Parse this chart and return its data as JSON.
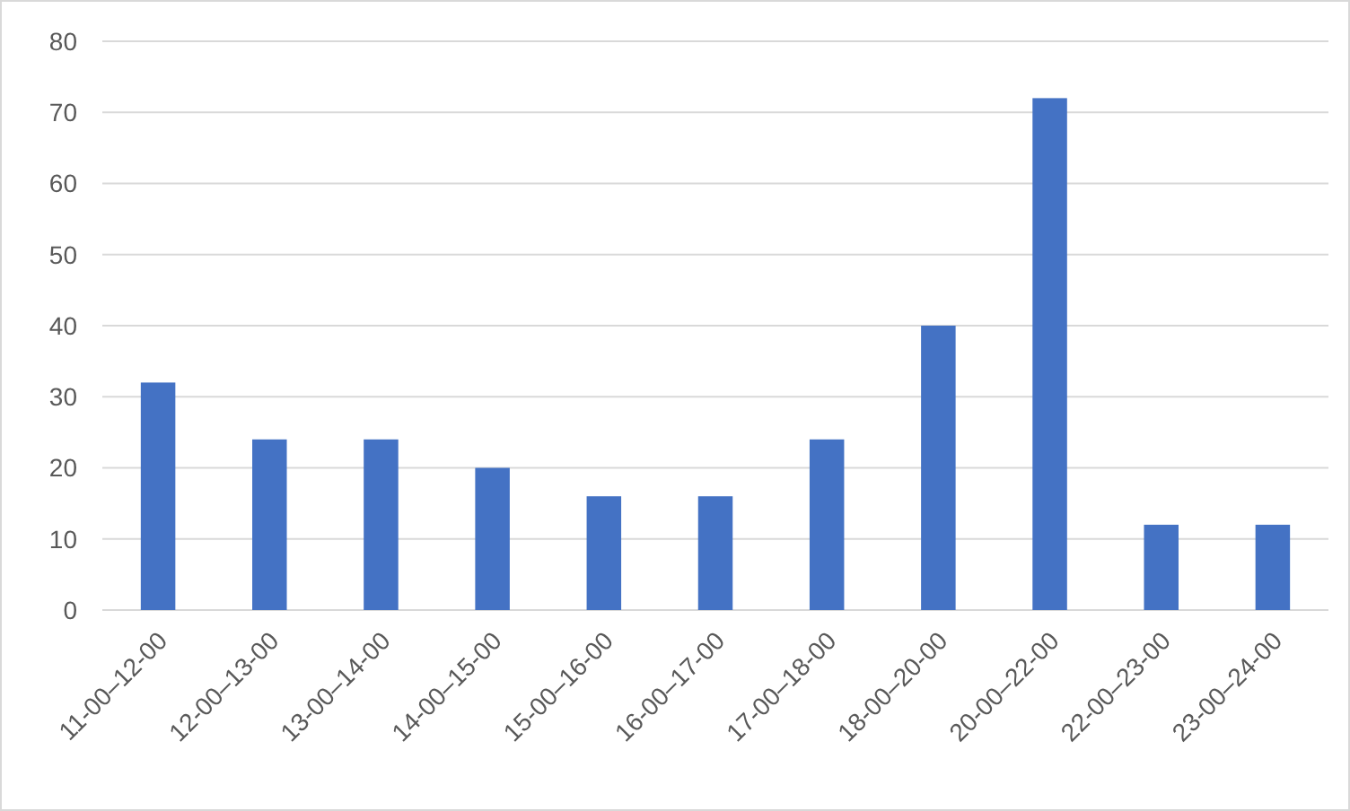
{
  "chart_data": {
    "type": "bar",
    "categories": [
      "11-00–12-00",
      "12-00–13-00",
      "13-00–14-00",
      "14-00–15-00",
      "15-00–16-00",
      "16-00–17-00",
      "17-00–18-00",
      "18-00–20-00",
      "20-00–22-00",
      "22-00–23-00",
      "23-00–24-00"
    ],
    "values": [
      32,
      24,
      24,
      20,
      16,
      16,
      24,
      40,
      72,
      12,
      12
    ],
    "color": "#4472c4",
    "ylim": [
      0,
      80
    ],
    "yticks": [
      0,
      10,
      20,
      30,
      40,
      50,
      60,
      70,
      80
    ],
    "grid": "y"
  }
}
